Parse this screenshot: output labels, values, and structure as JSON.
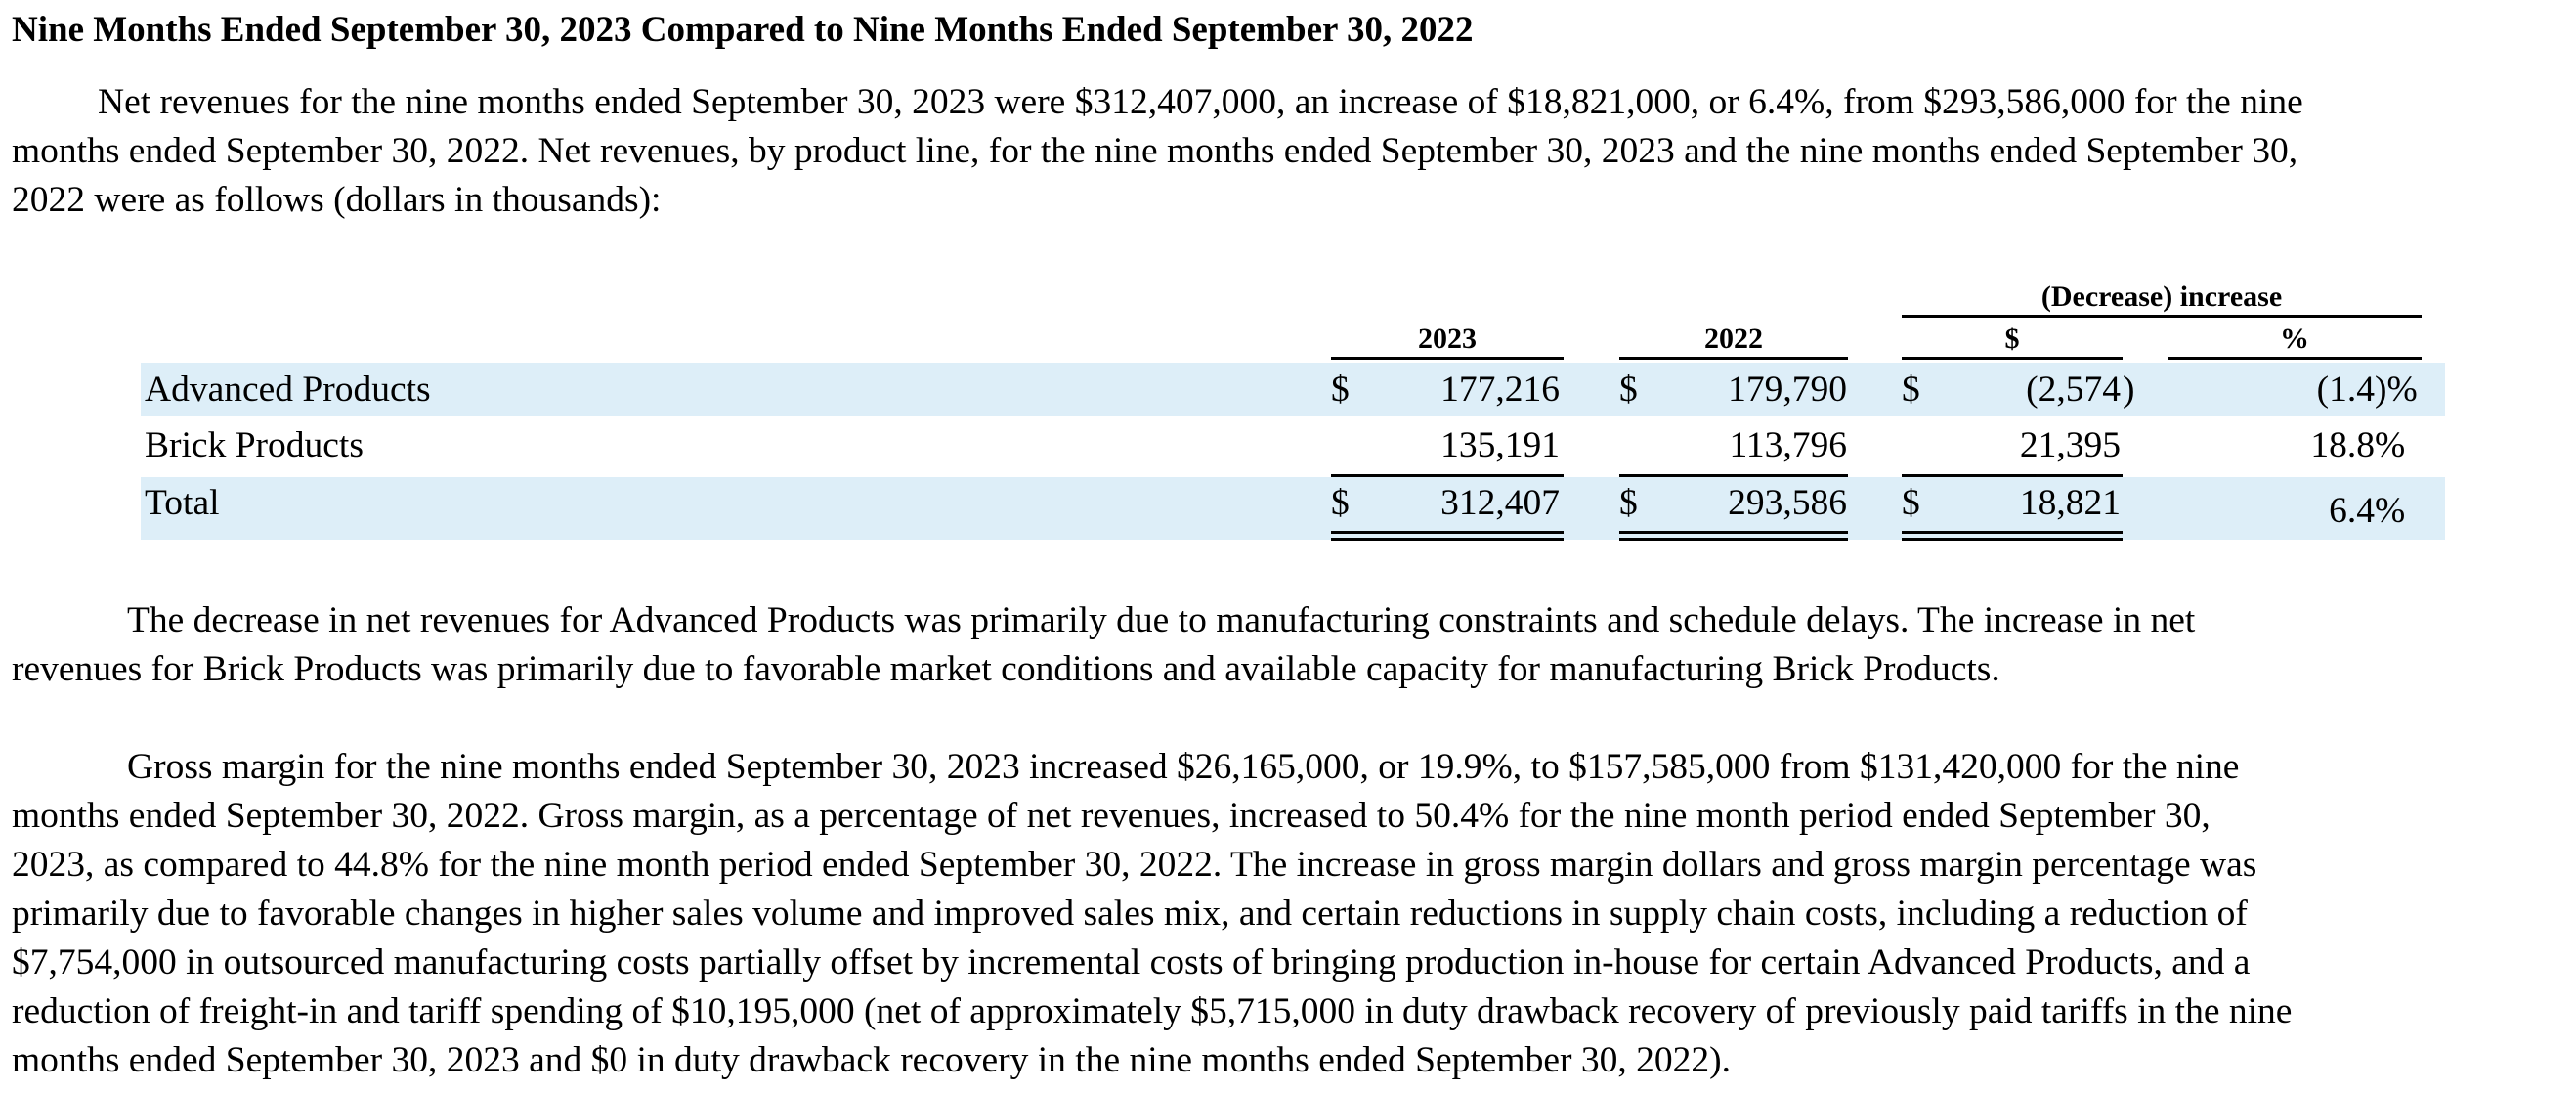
{
  "heading": "Nine Months Ended September 30, 2023 Compared to Nine Months Ended September 30, 2022",
  "paragraph1": {
    "lines": [
      "Net revenues for the nine months ended September 30, 2023 were $312,407,000, an increase of $18,821,000, or 6.4%, from $293,586,000 for the nine",
      "months ended September 30, 2022. Net revenues, by product line, for the nine months ended September 30, 2023 and the nine months ended September 30,",
      "2022 were as follows (dollars in thousands):"
    ]
  },
  "table": {
    "group_header": "(Decrease) increase",
    "columns": [
      "2023",
      "2022",
      "$",
      "%"
    ],
    "rows": [
      {
        "label": "Advanced Products",
        "cur1": "$",
        "v2023": "177,216",
        "cur2": "$",
        "v2022": "179,790",
        "cur3": "$",
        "change": "(2,574",
        "change_close": ")",
        "pct": "(1.4",
        "pct_suffix": ")%"
      },
      {
        "label": "Brick Products",
        "cur1": "",
        "v2023": "135,191",
        "cur2": "",
        "v2022": "113,796",
        "cur3": "",
        "change": "21,395",
        "change_close": "",
        "pct": "18.8",
        "pct_suffix": "%"
      },
      {
        "label": "Total",
        "cur1": "$",
        "v2023": "312,407",
        "cur2": "$",
        "v2022": "293,586",
        "cur3": "$",
        "change": "18,821",
        "change_close": "",
        "pct": "6.4",
        "pct_suffix": "%"
      }
    ],
    "band_color": "#ddeef8"
  },
  "paragraph2": {
    "lines": [
      "The decrease in net revenues for Advanced Products was primarily due to manufacturing constraints and schedule delays.  The increase in net",
      "revenues for Brick Products was primarily due to favorable market conditions and available capacity for manufacturing Brick Products."
    ]
  },
  "paragraph3": {
    "lines": [
      "Gross margin for the nine months ended September 30, 2023 increased $26,165,000, or 19.9%, to $157,585,000 from $131,420,000 for the nine",
      "months ended September 30, 2022. Gross margin, as a percentage of net revenues, increased to 50.4% for the nine month period ended September 30,",
      "2023, as compared to 44.8% for the nine month period ended September 30, 2022. The increase in gross margin dollars and gross margin percentage was",
      "primarily due to favorable changes in higher sales volume and improved sales mix, and certain reductions in supply chain costs, including a reduction of",
      "$7,754,000 in outsourced manufacturing costs partially offset by incremental costs of bringing production in-house for certain Advanced Products, and a",
      "reduction of freight-in and tariff spending of $10,195,000 (net of approximately $5,715,000 in duty drawback recovery of previously paid tariffs in the nine",
      "months ended September 30, 2023 and $0 in duty drawback recovery in the nine  months ended September  30, 2022)."
    ]
  }
}
